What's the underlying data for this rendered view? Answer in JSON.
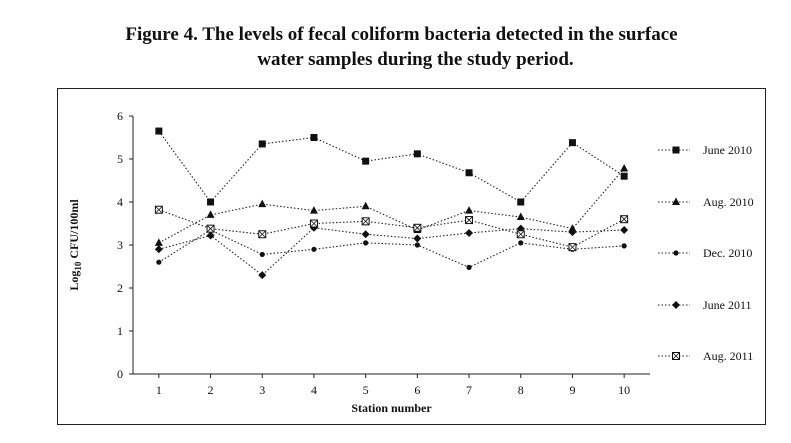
{
  "figure": {
    "caption_line1": "Figure 4. The levels of fecal coliform bacteria detected in the surface",
    "caption_line2": "water samples during the study period."
  },
  "chart_data": {
    "type": "line",
    "xlabel": "Station number",
    "ylabel": "Log10 CFU/100ml",
    "ylabel_base": "Log",
    "ylabel_sub": "10",
    "ylabel_rest": " CFU/100ml",
    "x": [
      1,
      2,
      3,
      4,
      5,
      6,
      7,
      8,
      9,
      10
    ],
    "ylim": [
      0,
      6
    ],
    "yticks": [
      0,
      1,
      2,
      3,
      4,
      5,
      6
    ],
    "grid": false,
    "legend_placement": "right",
    "series": [
      {
        "name": "June 2010",
        "marker": "square",
        "values": [
          5.65,
          4.0,
          5.35,
          5.5,
          4.95,
          5.12,
          4.68,
          4.0,
          5.38,
          4.6
        ]
      },
      {
        "name": "Aug. 2010",
        "marker": "triangle",
        "values": [
          3.05,
          3.7,
          3.95,
          3.8,
          3.9,
          3.35,
          3.8,
          3.65,
          3.38,
          4.78
        ]
      },
      {
        "name": "Dec. 2010",
        "marker": "dot",
        "values": [
          2.6,
          3.35,
          2.78,
          2.9,
          3.05,
          3.0,
          2.48,
          3.05,
          2.9,
          2.98
        ]
      },
      {
        "name": "June 2011",
        "marker": "diamond",
        "values": [
          2.9,
          3.22,
          2.3,
          3.4,
          3.25,
          3.15,
          3.28,
          3.38,
          3.3,
          3.35
        ]
      },
      {
        "name": "Aug. 2011",
        "marker": "open-square",
        "values": [
          3.82,
          3.38,
          3.25,
          3.5,
          3.55,
          3.4,
          3.58,
          3.25,
          2.95,
          3.6
        ]
      }
    ]
  }
}
